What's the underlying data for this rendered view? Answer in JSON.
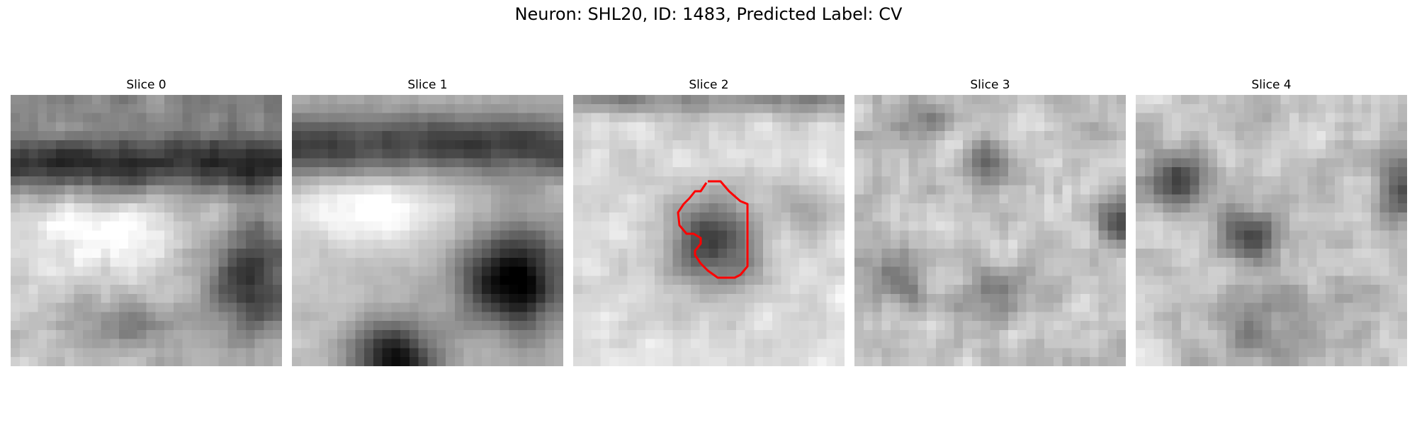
{
  "title": "Neuron: SHL20, ID: 1483, Predicted Label: CV",
  "slices": [
    {
      "label": "Slice 0",
      "pattern": "dark-band-top-bright-middle-dark-blob-right",
      "contour": false
    },
    {
      "label": "Slice 1",
      "pattern": "dark-band-top-bright-band-dark-blobs-bottom-right",
      "contour": false
    },
    {
      "label": "Slice 2",
      "pattern": "bright-field-central-dark-blob",
      "contour": true
    },
    {
      "label": "Slice 3",
      "pattern": "noisy-field-small-dark-spots",
      "contour": false
    },
    {
      "label": "Slice 4",
      "pattern": "noisy-field-dark-spots-left-and-center",
      "contour": false
    }
  ],
  "contour_color": "#ff0000",
  "colormap": "grayscale"
}
